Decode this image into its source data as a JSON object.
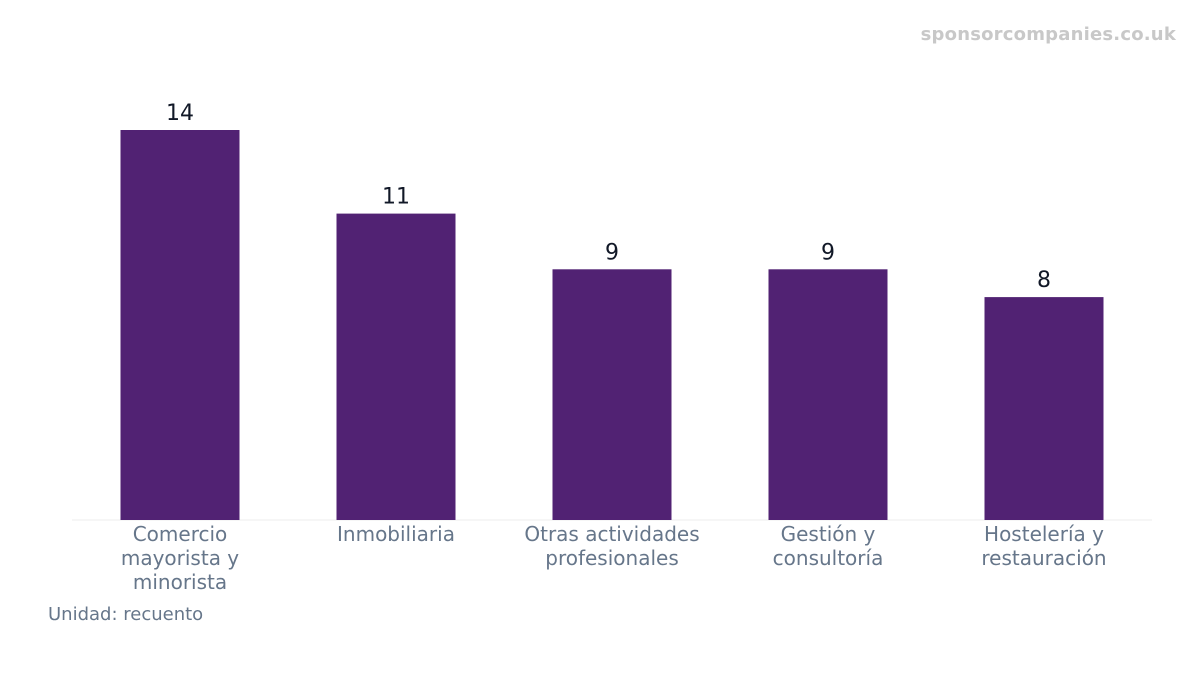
{
  "watermark": "sponsorcompanies.co.uk",
  "unit_note": "Unidad: recuento",
  "colors": {
    "bar": "#512273",
    "value_label": "#111827",
    "tick_label": "#66768a",
    "watermark": "#c8c8c8"
  },
  "chart_data": {
    "type": "bar",
    "title": "",
    "xlabel": "",
    "ylabel": "",
    "categories": [
      [
        "Comercio",
        "mayorista y",
        "minorista"
      ],
      [
        "Inmobiliaria"
      ],
      [
        "Otras actividades",
        "profesionales"
      ],
      [
        "Gestión y",
        "consultoría"
      ],
      [
        "Hostelería y",
        "restauración"
      ]
    ],
    "values": [
      14,
      11,
      9,
      9,
      8
    ],
    "ylim": [
      0,
      14
    ],
    "grid": false,
    "legend": "none",
    "data_labels": true
  }
}
